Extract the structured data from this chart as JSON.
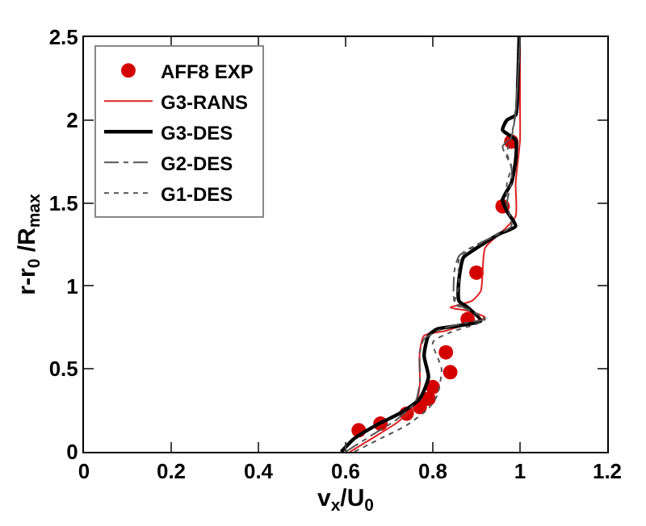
{
  "chart_data": {
    "type": "line",
    "xlabel": "v$_{x}$/U$_{0}$",
    "ylabel": "r-r$_{0}$ /R$_{max}$",
    "xlim": [
      0,
      1.2
    ],
    "xticks": [
      0,
      0.2,
      0.4,
      0.6,
      0.8,
      1,
      1.2
    ],
    "ylim": [
      0,
      2.5
    ],
    "yticks": [
      0,
      0.5,
      1,
      1.5,
      2,
      2.5
    ],
    "grid": false,
    "legend": "top left",
    "series": [
      {
        "name": "AFF8 EXP",
        "type": "scatter",
        "marker": "circle",
        "color": "#d40000",
        "x": [
          0.63,
          0.68,
          0.74,
          0.77,
          0.79,
          0.8,
          0.84,
          0.83,
          0.88,
          0.9,
          0.96,
          0.98
        ],
        "values": [
          0.13,
          0.17,
          0.23,
          0.27,
          0.32,
          0.39,
          0.48,
          0.6,
          0.8,
          1.08,
          1.48,
          1.87
        ]
      },
      {
        "name": "G3-RANS",
        "line_style": "solid",
        "color": "#e02020",
        "x": [
          0.61,
          0.66,
          0.72,
          0.76,
          0.77,
          0.77,
          0.78,
          0.83,
          0.89,
          0.92,
          0.88,
          0.84,
          0.89,
          0.91,
          0.92,
          0.96,
          0.99,
          0.99,
          1.0,
          1.0,
          1.0
        ],
        "values": [
          0,
          0.08,
          0.18,
          0.28,
          0.4,
          0.6,
          0.7,
          0.73,
          0.78,
          0.81,
          0.85,
          0.87,
          0.91,
          0.97,
          1.23,
          1.33,
          1.42,
          1.62,
          1.88,
          2.07,
          2.5
        ]
      },
      {
        "name": "G3-DES",
        "line_style": "solid",
        "color": "#000000",
        "x": [
          0.59,
          0.62,
          0.67,
          0.73,
          0.77,
          0.79,
          0.78,
          0.79,
          0.81,
          0.86,
          0.91,
          0.88,
          0.86,
          0.86,
          0.87,
          0.89,
          0.95,
          0.99,
          0.97,
          0.96,
          0.98,
          0.99,
          0.99,
          0.96,
          0.97,
          0.99,
          0.995,
          0.998
        ],
        "values": [
          0,
          0.08,
          0.16,
          0.24,
          0.32,
          0.45,
          0.58,
          0.7,
          0.74,
          0.76,
          0.79,
          0.87,
          0.91,
          1.04,
          1.17,
          1.21,
          1.31,
          1.36,
          1.45,
          1.52,
          1.62,
          1.76,
          1.88,
          1.94,
          2.0,
          2.03,
          2.23,
          2.5
        ]
      },
      {
        "name": "G2-DES",
        "line_style": "dashdot",
        "color": "#555555",
        "x": [
          0.6,
          0.66,
          0.72,
          0.76,
          0.77,
          0.77,
          0.78,
          0.82,
          0.88,
          0.92,
          0.87,
          0.85,
          0.85,
          0.86,
          0.88,
          0.94,
          0.98,
          0.97,
          0.98,
          0.98,
          0.96,
          0.98,
          0.99,
          1.0
        ],
        "values": [
          0,
          0.1,
          0.2,
          0.3,
          0.42,
          0.6,
          0.68,
          0.74,
          0.78,
          0.8,
          0.87,
          0.9,
          1.1,
          1.18,
          1.22,
          1.3,
          1.36,
          1.5,
          1.62,
          1.72,
          1.84,
          1.9,
          2.05,
          2.5
        ]
      },
      {
        "name": "G1-DES",
        "line_style": "dotted",
        "color": "#555555",
        "x": [
          0.62,
          0.68,
          0.74,
          0.79,
          0.81,
          0.82,
          0.8,
          0.84,
          0.9,
          0.92,
          0.88,
          0.85,
          0.86,
          0.86,
          0.88,
          0.94,
          0.98,
          0.97,
          0.97,
          0.98,
          0.97,
          0.98,
          0.99,
          1.0
        ],
        "values": [
          0,
          0.08,
          0.16,
          0.26,
          0.34,
          0.5,
          0.66,
          0.72,
          0.77,
          0.8,
          0.86,
          0.89,
          1.0,
          1.16,
          1.21,
          1.3,
          1.36,
          1.5,
          1.62,
          1.72,
          1.8,
          1.9,
          2.05,
          2.5
        ]
      }
    ]
  }
}
